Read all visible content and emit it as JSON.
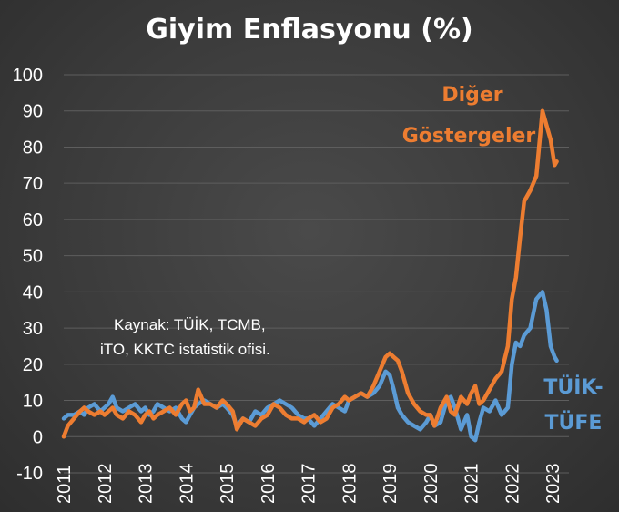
{
  "chart_data": {
    "type": "line",
    "title": "Giyim Enflasyonu (%)",
    "ylim": [
      -10,
      100
    ],
    "yticks": [
      -10,
      0,
      10,
      20,
      30,
      40,
      50,
      60,
      70,
      80,
      90,
      100
    ],
    "xlim": [
      2011,
      2023.4
    ],
    "xticks": [
      2011,
      2012,
      2013,
      2014,
      2015,
      2016,
      2017,
      2018,
      2019,
      2020,
      2021,
      2022,
      2023
    ],
    "grid": "horizontal",
    "source_lines": [
      "Kaynak: TÜİK, TCMB,",
      "iTO, KKTC istatistik ofisi."
    ],
    "series": [
      {
        "name": "Diğer Göstergeler",
        "label_lines": [
          "Diğer",
          "Göstergeler"
        ],
        "color": "#ed7d31",
        "x": [
          2011.0,
          2011.1,
          2011.25,
          2011.4,
          2011.5,
          2011.6,
          2011.75,
          2011.9,
          2012.0,
          2012.1,
          2012.2,
          2012.3,
          2012.45,
          2012.6,
          2012.75,
          2012.9,
          2013.0,
          2013.1,
          2013.2,
          2013.3,
          2013.45,
          2013.6,
          2013.75,
          2013.9,
          2014.0,
          2014.1,
          2014.2,
          2014.3,
          2014.45,
          2014.6,
          2014.75,
          2014.9,
          2015.0,
          2015.15,
          2015.25,
          2015.4,
          2015.55,
          2015.7,
          2015.85,
          2016.0,
          2016.15,
          2016.3,
          2016.45,
          2016.6,
          2016.75,
          2016.9,
          2017.0,
          2017.15,
          2017.3,
          2017.45,
          2017.6,
          2017.75,
          2017.9,
          2018.0,
          2018.15,
          2018.3,
          2018.45,
          2018.6,
          2018.75,
          2018.9,
          2019.0,
          2019.1,
          2019.2,
          2019.3,
          2019.45,
          2019.6,
          2019.75,
          2019.9,
          2020.0,
          2020.1,
          2020.25,
          2020.4,
          2020.5,
          2020.6,
          2020.75,
          2020.9,
          2021.0,
          2021.1,
          2021.2,
          2021.3,
          2021.45,
          2021.6,
          2021.75,
          2021.9,
          2022.0,
          2022.1,
          2022.2,
          2022.3,
          2022.45,
          2022.6,
          2022.75,
          2022.85,
          2022.95,
          2023.05,
          2023.1
        ],
        "values": [
          0,
          3,
          5,
          7,
          8,
          7,
          6,
          7,
          6,
          7,
          8,
          6,
          5,
          7,
          6,
          4,
          6,
          7,
          5,
          6,
          7,
          8,
          6,
          9,
          10,
          7,
          8,
          13,
          9,
          9,
          8,
          10,
          9,
          7,
          2,
          5,
          4,
          3,
          5,
          6,
          9,
          8,
          6,
          5,
          5,
          4,
          5,
          6,
          4,
          5,
          8,
          9,
          11,
          10,
          11,
          12,
          11,
          14,
          18,
          22,
          23,
          22,
          21,
          18,
          12,
          9,
          7,
          6,
          6,
          3,
          8,
          11,
          7,
          6,
          11,
          9,
          12,
          14,
          9,
          10,
          13,
          16,
          18,
          25,
          38,
          44,
          55,
          65,
          68,
          72,
          90,
          86,
          82,
          75,
          76
        ]
      },
      {
        "name": "TÜİK-TÜFE",
        "label_lines": [
          "TÜİK-",
          "TÜFE"
        ],
        "color": "#5b9bd5",
        "x": [
          2011.0,
          2011.1,
          2011.25,
          2011.4,
          2011.5,
          2011.6,
          2011.75,
          2011.9,
          2012.0,
          2012.1,
          2012.2,
          2012.3,
          2012.45,
          2012.6,
          2012.75,
          2012.9,
          2013.0,
          2013.1,
          2013.2,
          2013.3,
          2013.45,
          2013.6,
          2013.75,
          2013.9,
          2014.0,
          2014.1,
          2014.2,
          2014.3,
          2014.45,
          2014.6,
          2014.75,
          2014.9,
          2015.0,
          2015.15,
          2015.25,
          2015.4,
          2015.55,
          2015.7,
          2015.85,
          2016.0,
          2016.15,
          2016.3,
          2016.45,
          2016.6,
          2016.75,
          2016.9,
          2017.0,
          2017.15,
          2017.3,
          2017.45,
          2017.6,
          2017.75,
          2017.9,
          2018.0,
          2018.15,
          2018.3,
          2018.45,
          2018.6,
          2018.75,
          2018.9,
          2019.0,
          2019.1,
          2019.2,
          2019.3,
          2019.45,
          2019.6,
          2019.75,
          2019.9,
          2020.0,
          2020.1,
          2020.25,
          2020.4,
          2020.5,
          2020.6,
          2020.75,
          2020.9,
          2021.0,
          2021.1,
          2021.2,
          2021.3,
          2021.45,
          2021.6,
          2021.75,
          2021.9,
          2022.0,
          2022.1,
          2022.2,
          2022.3,
          2022.45,
          2022.6,
          2022.75,
          2022.85,
          2022.95,
          2023.05,
          2023.1
        ],
        "values": [
          5,
          6,
          6,
          7,
          6,
          8,
          9,
          7,
          8,
          9,
          11,
          8,
          7,
          8,
          9,
          7,
          8,
          6,
          7,
          9,
          8,
          7,
          8,
          5,
          4,
          6,
          8,
          9,
          10,
          9,
          8,
          9,
          8,
          6,
          3,
          5,
          4,
          7,
          6,
          8,
          9,
          10,
          9,
          8,
          6,
          5,
          5,
          3,
          5,
          7,
          9,
          8,
          7,
          10,
          11,
          12,
          11,
          12,
          14,
          18,
          17,
          13,
          8,
          6,
          4,
          3,
          2,
          4,
          6,
          3,
          4,
          10,
          11,
          8,
          2,
          6,
          0,
          -1,
          4,
          8,
          7,
          10,
          6,
          8,
          20,
          26,
          25,
          28,
          30,
          38,
          40,
          35,
          25,
          22,
          21
        ]
      }
    ]
  }
}
